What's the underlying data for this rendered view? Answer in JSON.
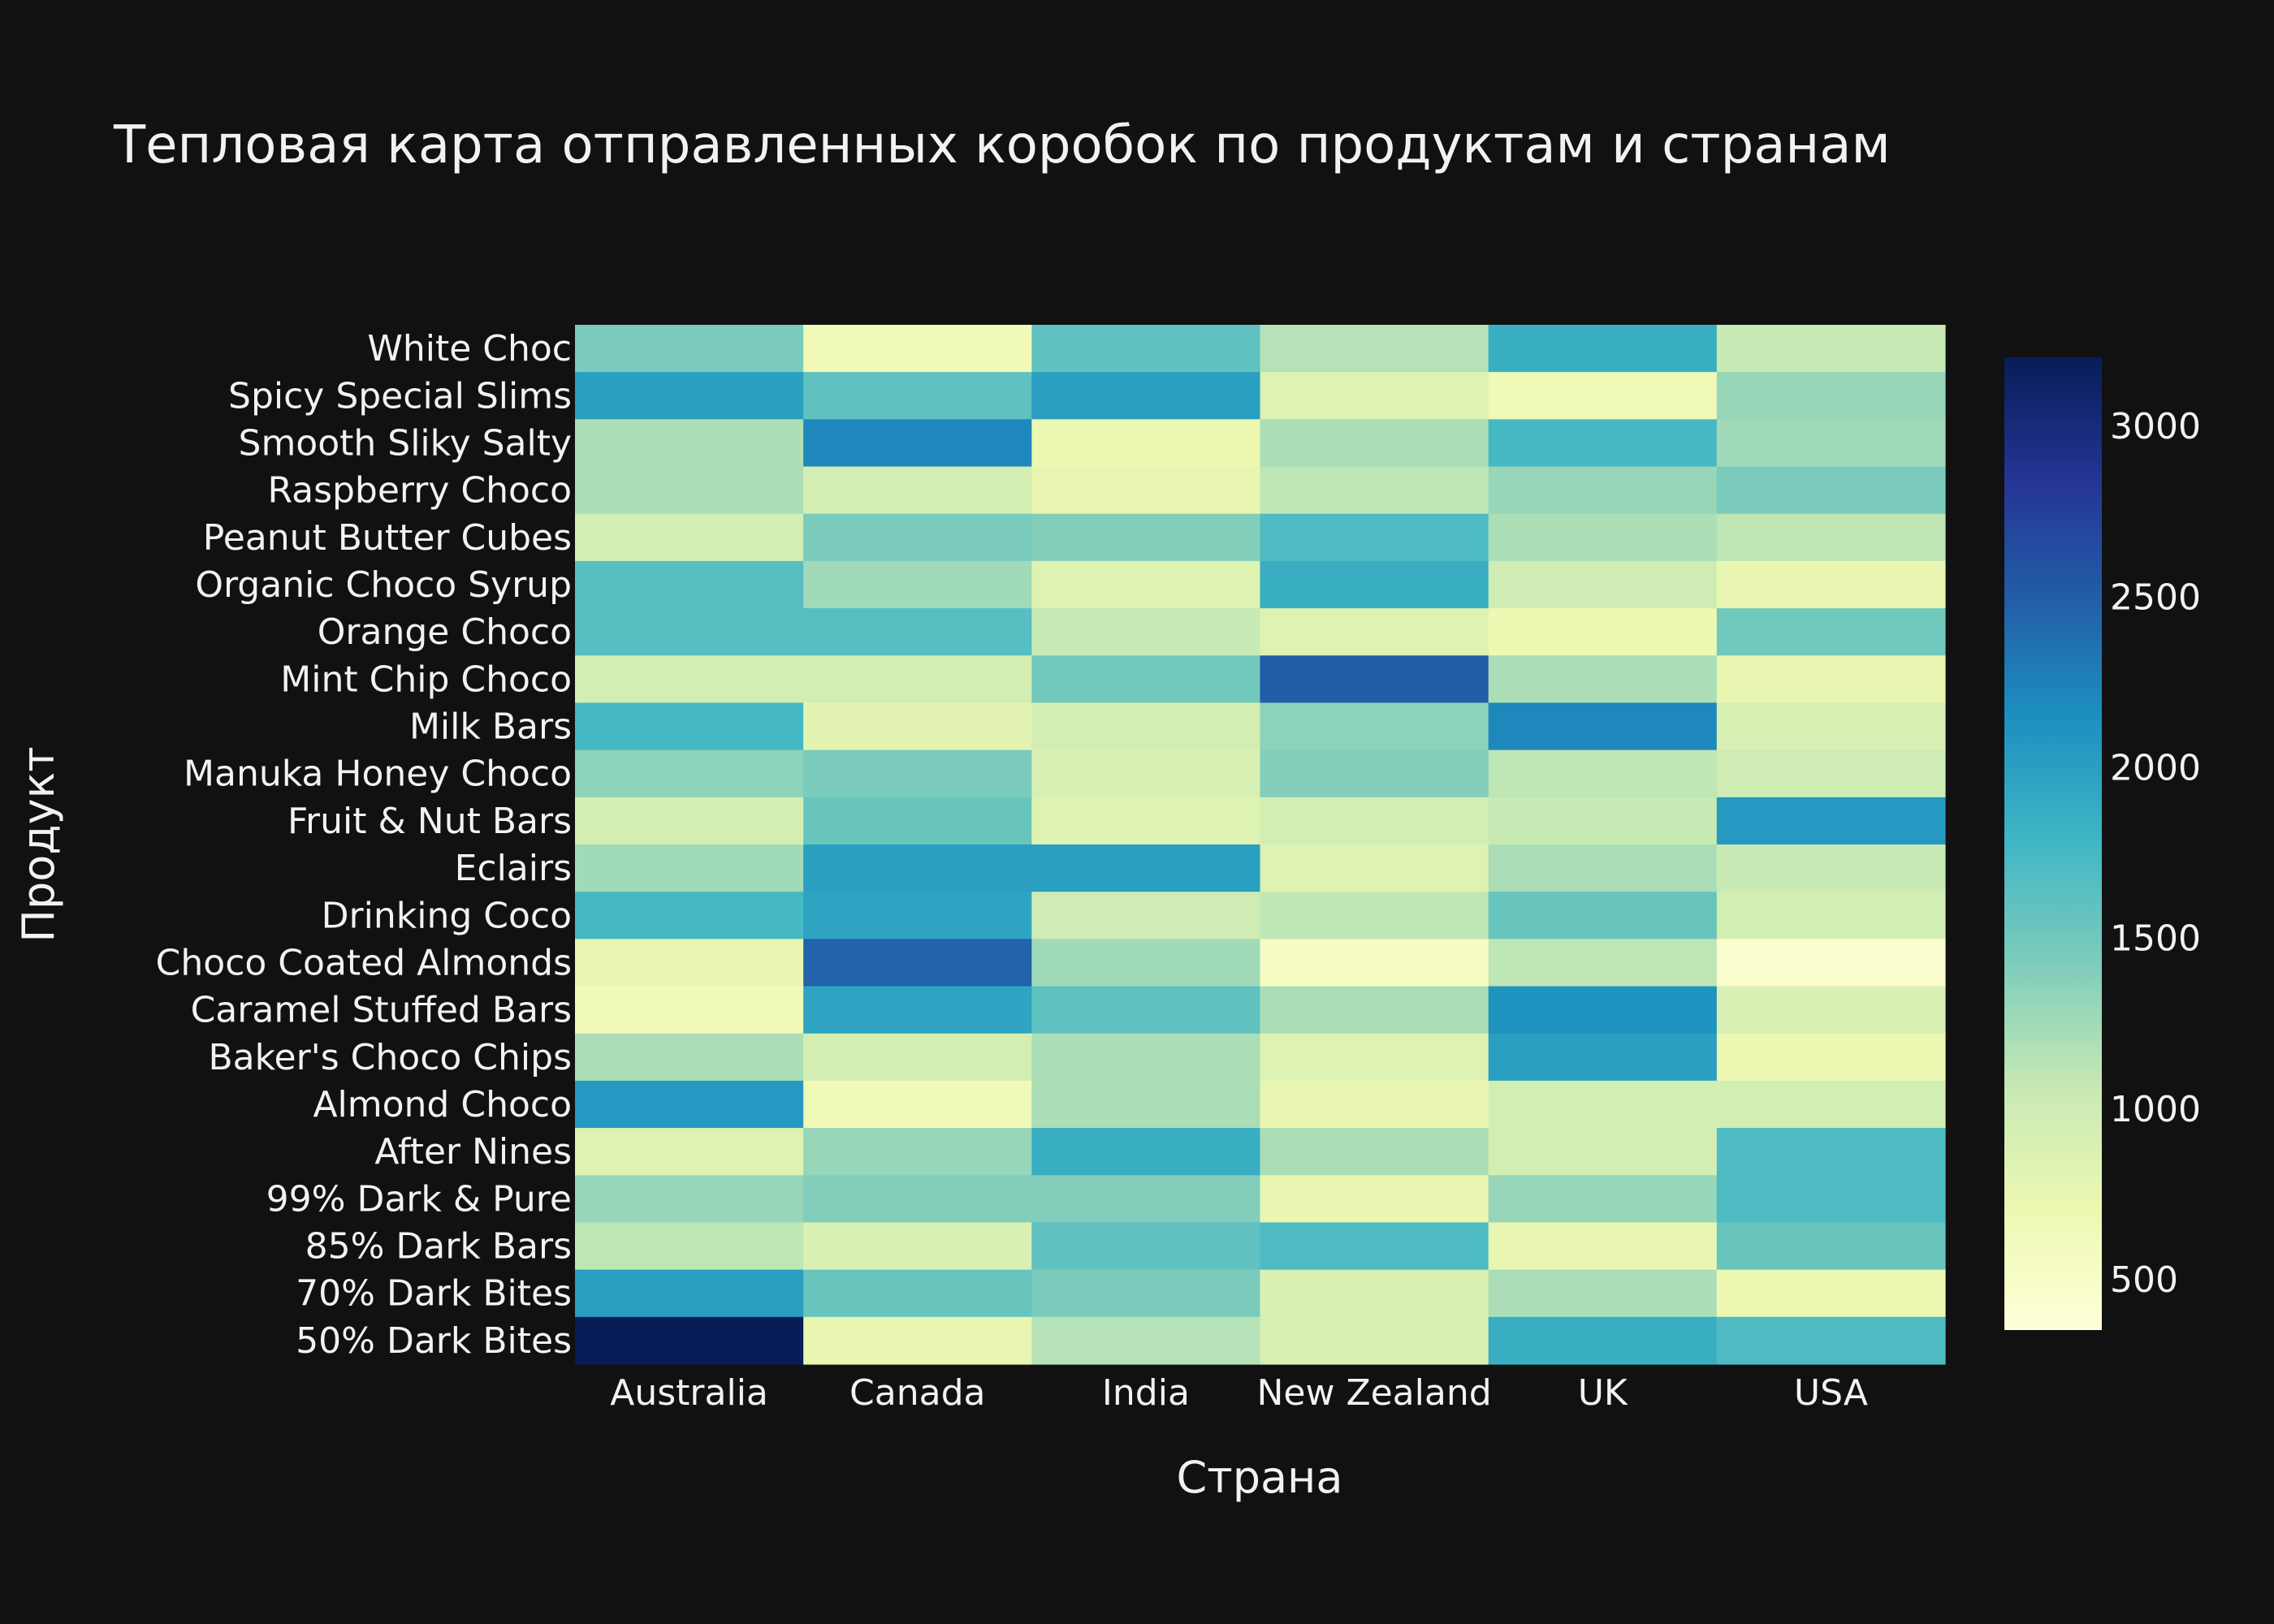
{
  "chart_data": {
    "type": "heatmap",
    "title": "Тепловая карта отправленных коробок по продуктам и странам",
    "xlabel": "Страна",
    "ylabel": "Продукт",
    "x": [
      "Australia",
      "Canada",
      "India",
      "New Zealand",
      "UK",
      "USA"
    ],
    "y": [
      "White Choc",
      "Spicy Special Slims",
      "Smooth Sliky Salty",
      "Raspberry Choco",
      "Peanut Butter Cubes",
      "Organic Choco Syrup",
      "Orange Choco",
      "Mint Chip Choco",
      "Milk Bars",
      "Manuka Honey Choco",
      "Fruit & Nut Bars",
      "Eclairs",
      "Drinking Coco",
      "Choco Coated Almonds",
      "Caramel Stuffed Bars",
      "Baker's Choco Chips",
      "Almond Choco",
      "After Nines",
      "99% Dark & Pure",
      "85% Dark Bars",
      "70% Dark Bites",
      "50% Dark Bites"
    ],
    "z": [
      [
        1450,
        650,
        1600,
        1150,
        1850,
        1050
      ],
      [
        2000,
        1600,
        2000,
        850,
        650,
        1300
      ],
      [
        1200,
        2200,
        700,
        1200,
        1750,
        1250
      ],
      [
        1200,
        950,
        750,
        1100,
        1300,
        1450
      ],
      [
        950,
        1450,
        1400,
        1700,
        1200,
        1100
      ],
      [
        1650,
        1250,
        850,
        1850,
        1000,
        750
      ],
      [
        1650,
        1650,
        1050,
        850,
        700,
        1500
      ],
      [
        950,
        950,
        1500,
        2500,
        1200,
        750
      ],
      [
        1750,
        800,
        950,
        1350,
        2200,
        900
      ],
      [
        1350,
        1450,
        900,
        1400,
        1100,
        1000
      ],
      [
        950,
        1550,
        850,
        950,
        1050,
        2050
      ],
      [
        1250,
        2000,
        2000,
        850,
        1200,
        1050
      ],
      [
        1750,
        1950,
        1000,
        1100,
        1550,
        950
      ],
      [
        750,
        2450,
        1250,
        550,
        1100,
        450
      ],
      [
        650,
        1950,
        1600,
        1200,
        2100,
        900
      ],
      [
        1200,
        950,
        1200,
        850,
        2000,
        700
      ],
      [
        2050,
        650,
        1200,
        750,
        950,
        950
      ],
      [
        850,
        1300,
        1850,
        1200,
        950,
        1700
      ],
      [
        1300,
        1400,
        1400,
        750,
        1300,
        1700
      ],
      [
        1100,
        900,
        1600,
        1700,
        750,
        1550
      ],
      [
        2000,
        1550,
        1450,
        900,
        1200,
        700
      ],
      [
        3200,
        750,
        1150,
        900,
        1850,
        1700
      ]
    ],
    "zmin": 350,
    "zmax": 3200,
    "colorbar": {
      "ticks": [
        500,
        1000,
        1500,
        2000,
        2500,
        3000
      ],
      "tick_labels": [
        "500",
        "1000",
        "1500",
        "2000",
        "2500",
        "3000"
      ],
      "colorscale": "YlGnBu",
      "placement": "right"
    },
    "grid": false,
    "background": "#111111"
  }
}
